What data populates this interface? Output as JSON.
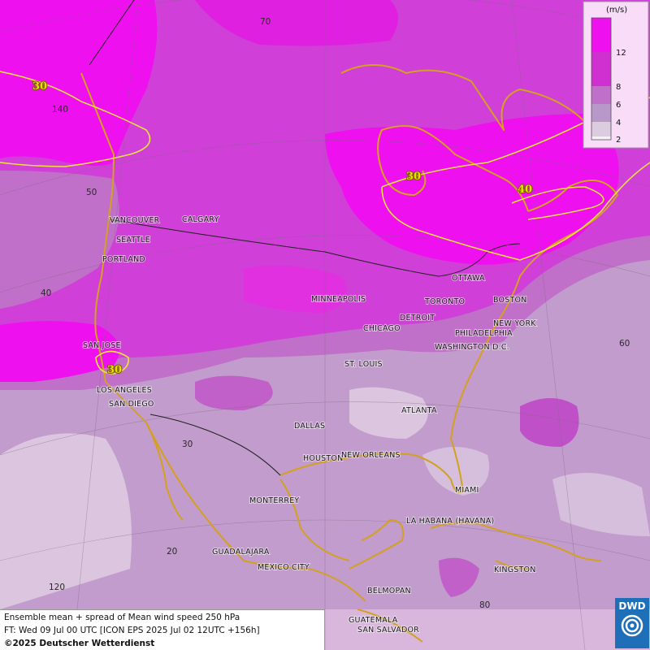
{
  "title_line": "Ensemble mean + spread of Mean wind speed 250 hPa",
  "forecast_line": "FT: Wed 09 Jul 00 UTC [ICON EPS 2025 Jul 02 12UTC +156h]",
  "copyright": "©2025 Deutscher Wetterdienst",
  "logo_text": "DWD",
  "legend": {
    "unit": "(m/s)",
    "ticks": [
      "12",
      "8",
      "6",
      "4",
      "2"
    ],
    "colors": [
      "#ee10ee",
      "#d030d0",
      "#c070c8",
      "#b898c8",
      "#dccce0",
      "#f4f0f4"
    ]
  },
  "colors": {
    "ocean_bg": "#d9b7dd",
    "land_low": "#b98fc8",
    "band_6_8": "#c070c8",
    "band_8_12": "#d040d8",
    "band_12p": "#ee10ee",
    "coast": "#d4a020",
    "border": "#202020",
    "contour": "#f0e040"
  },
  "contour_labels": [
    "30",
    "30",
    "40",
    "30"
  ],
  "lat_labels": [
    "70",
    "50",
    "40",
    "30",
    "20"
  ],
  "lon_labels": [
    "140",
    "120",
    "60",
    "80"
  ],
  "cities": [
    "VANCOUVER",
    "CALGARY",
    "SEATTLE",
    "PORTLAND",
    "SAN JOSE",
    "LOS ANGELES",
    "SAN DIEGO",
    "MINNEAPOLIS",
    "CHICAGO",
    "DETROIT",
    "TORONTO",
    "OTTAWA",
    "BOSTON",
    "NEW YORK",
    "PHILADELPHIA",
    "WASHINGTON D.C.",
    "ST. LOUIS",
    "ATLANTA",
    "DALLAS",
    "HOUSTON",
    "NEW ORLEANS",
    "MIAMI",
    "MONTERREY",
    "LA HABANA (HAVANA)",
    "GUADALAJARA",
    "MEXICO CITY",
    "KINGSTON",
    "BELMOPAN",
    "GUATEMALA",
    "SAN SALVADOR"
  ]
}
